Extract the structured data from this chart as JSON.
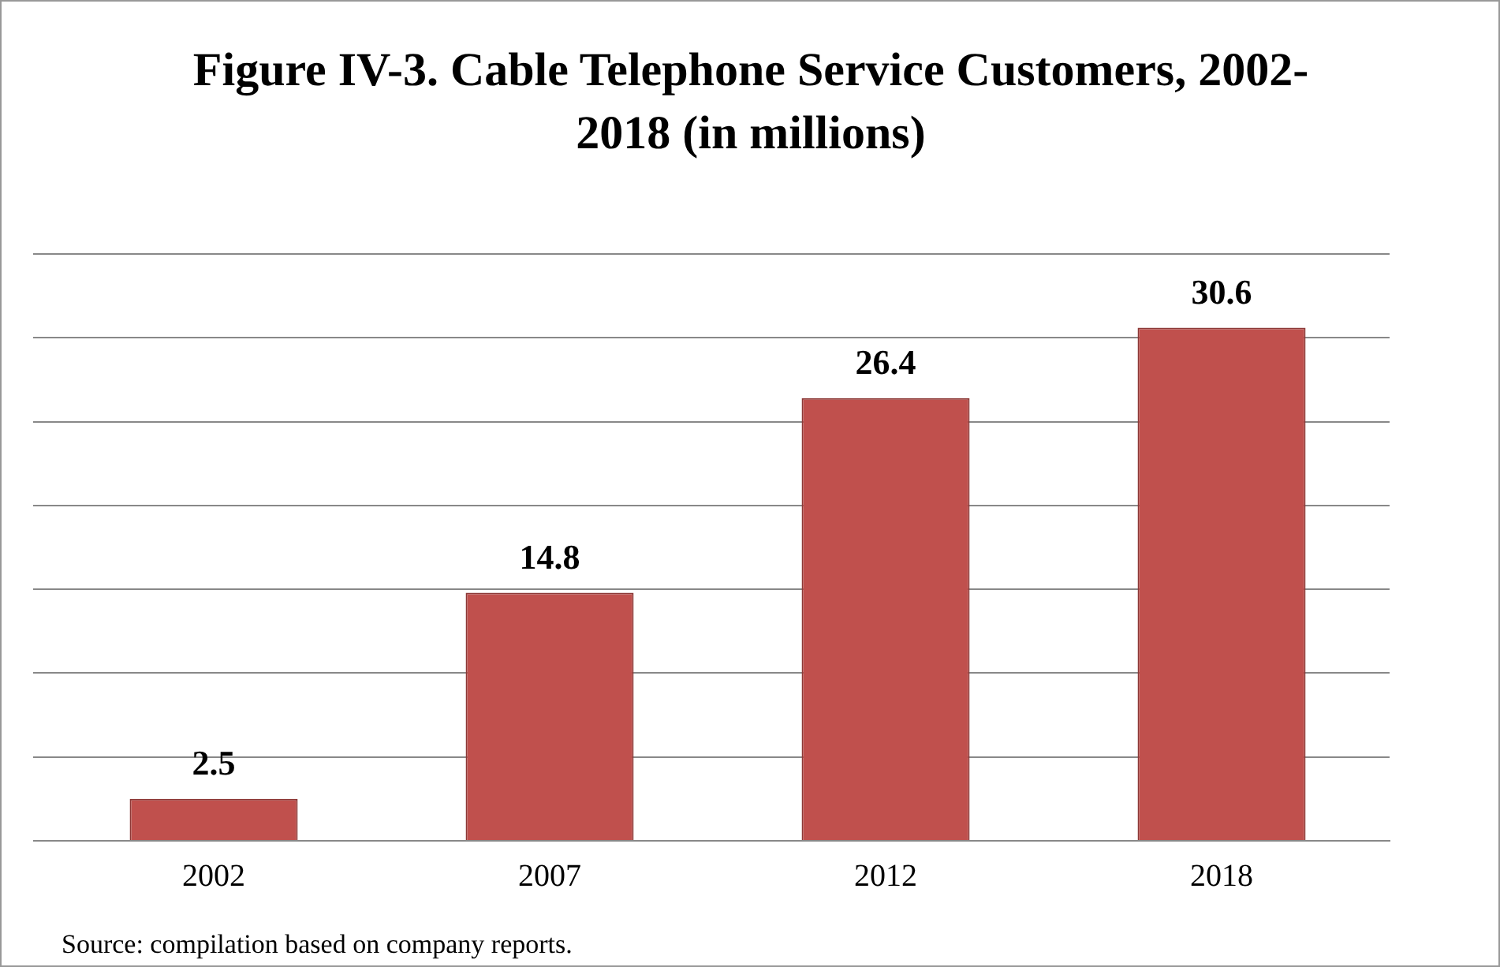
{
  "chart_data": {
    "type": "bar",
    "title": "Figure IV-3.  Cable Telephone Service Customers, 2002-2018 (in millions)",
    "categories": [
      "2002",
      "2007",
      "2012",
      "2018"
    ],
    "values": [
      2.5,
      14.8,
      26.4,
      30.6
    ],
    "color": "#c0504d",
    "ylim": [
      0,
      35
    ],
    "yticks": [
      {
        "value": 0,
        "label": null
      },
      {
        "value": 5,
        "label": null
      },
      {
        "value": 10,
        "label": null
      },
      {
        "value": 15,
        "label": null
      },
      {
        "value": 20,
        "label": null
      },
      {
        "value": 25,
        "label": null
      },
      {
        "value": 30,
        "label": null
      },
      {
        "value": 35,
        "label": null
      }
    ],
    "grid": "y",
    "tick_labels": "x",
    "data_labels": true,
    "legend": false,
    "annotations": [
      "Source:  compilation based on company reports."
    ]
  }
}
